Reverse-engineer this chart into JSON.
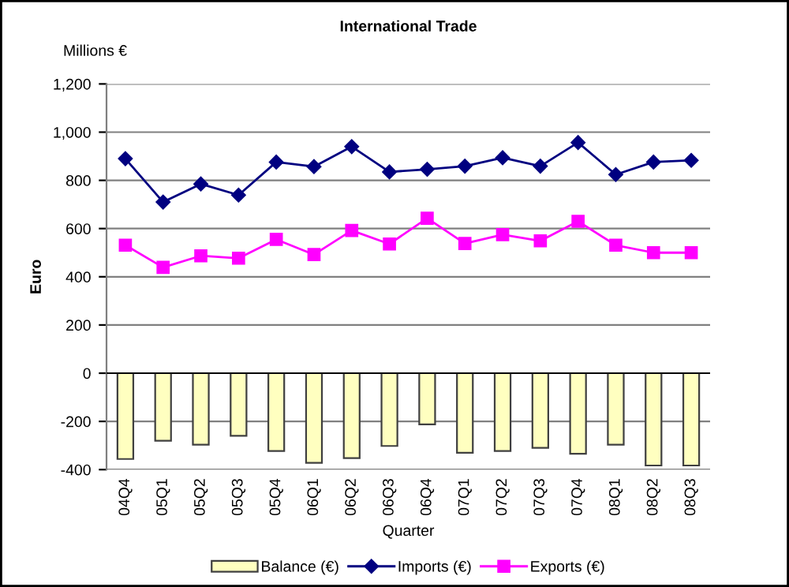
{
  "chart_data": {
    "type": "bar",
    "title": "International Trade",
    "xlabel": "Quarter",
    "ylabel": "Euro",
    "annotations": [
      "Millions €"
    ],
    "categories": [
      "04Q4",
      "05Q1",
      "05Q2",
      "05Q3",
      "05Q4",
      "06Q1",
      "06Q2",
      "06Q3",
      "06Q4",
      "07Q1",
      "07Q2",
      "07Q3",
      "07Q4",
      "08Q1",
      "08Q2",
      "08Q3"
    ],
    "series": [
      {
        "name": "Balance (€)",
        "color": "#ffffc0",
        "values": [
          -356,
          -280,
          -297,
          -260,
          -323,
          -372,
          -352,
          -302,
          -212,
          -330,
          -323,
          -310,
          -334,
          -297,
          -383,
          -383
        ]
      },
      {
        "name": "Imports (€)",
        "type": "line",
        "color": "#000080",
        "marker": "diamond",
        "values": [
          890,
          710,
          785,
          739,
          876,
          857,
          940,
          835,
          846,
          859,
          894,
          859,
          957,
          824,
          876,
          883
        ]
      },
      {
        "name": "Exports (€)",
        "type": "line",
        "color": "#ff00ff",
        "marker": "square",
        "values": [
          531,
          439,
          487,
          477,
          555,
          492,
          592,
          536,
          643,
          538,
          575,
          549,
          630,
          531,
          500,
          500
        ]
      }
    ],
    "ylim": [
      -400,
      1200
    ],
    "yticks": [
      {
        "value": -400,
        "label": "-400"
      },
      {
        "value": -200,
        "label": "-200"
      },
      0,
      200,
      400,
      600,
      800,
      {
        "value": 1000,
        "label": "1,000"
      },
      {
        "value": 1200,
        "label": "1,200"
      }
    ],
    "grid": "y",
    "legend": "bottom"
  }
}
